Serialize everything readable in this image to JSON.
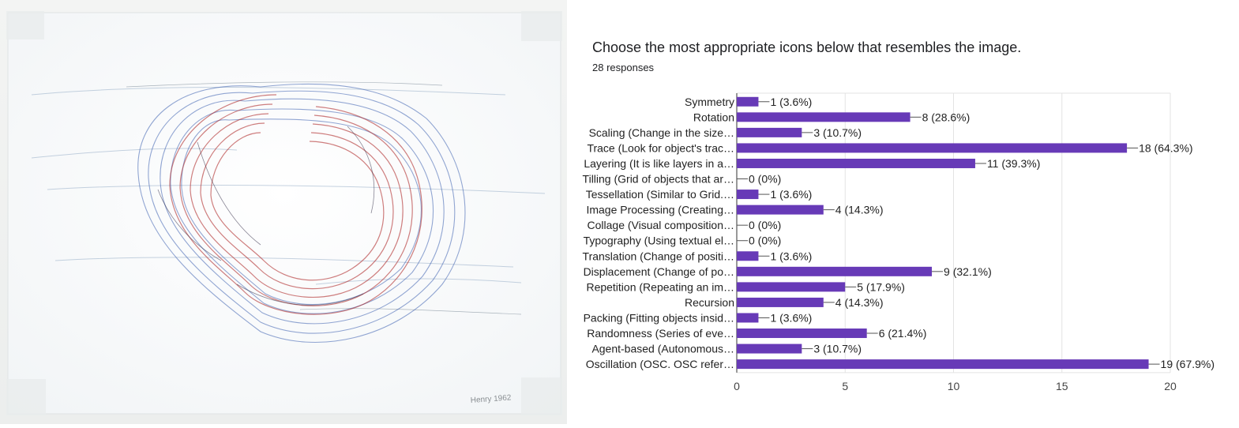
{
  "artwork": {
    "signature": "Henry 1962"
  },
  "survey": {
    "question": "Choose the most appropriate icons below that resembles the image.",
    "responses": "28 responses"
  },
  "chart_data": {
    "type": "bar",
    "orientation": "horizontal",
    "total": 28,
    "bar_color": "#673ab7",
    "categories": [
      "Symmetry",
      "Rotation",
      "Scaling (Change in the size…",
      "Trace (Look for object's trac…",
      "Layering (It is like layers in a…",
      "Tilling (Grid of objects that ar…",
      "Tessellation (Similar to Grid.…",
      "Image Processing (Creating…",
      "Collage (Visual composition…",
      "Typography (Using textual el…",
      "Translation (Change of positi…",
      "Displacement (Change of po…",
      "Repetition (Repeating an im…",
      "Recursion",
      "Packing (Fitting objects insid…",
      "Randomness (Series of eve…",
      "Agent-based (Autonomous…",
      "Oscillation (OSC. OSC refer…"
    ],
    "values": [
      1,
      8,
      3,
      18,
      11,
      0,
      1,
      4,
      0,
      0,
      1,
      9,
      5,
      4,
      1,
      6,
      3,
      19
    ],
    "value_labels": [
      "1 (3.6%)",
      "8 (28.6%)",
      "3 (10.7%)",
      "18 (64.3%)",
      "11 (39.3%)",
      "0 (0%)",
      "1 (3.6%)",
      "4 (14.3%)",
      "0 (0%)",
      "0 (0%)",
      "1 (3.6%)",
      "9 (32.1%)",
      "5 (17.9%)",
      "4 (14.3%)",
      "1 (3.6%)",
      "6 (21.4%)",
      "3 (10.7%)",
      "19 (67.9%)"
    ],
    "xlim": [
      0,
      20
    ],
    "xticks": [
      0,
      5,
      10,
      15,
      20
    ],
    "grid": true
  }
}
